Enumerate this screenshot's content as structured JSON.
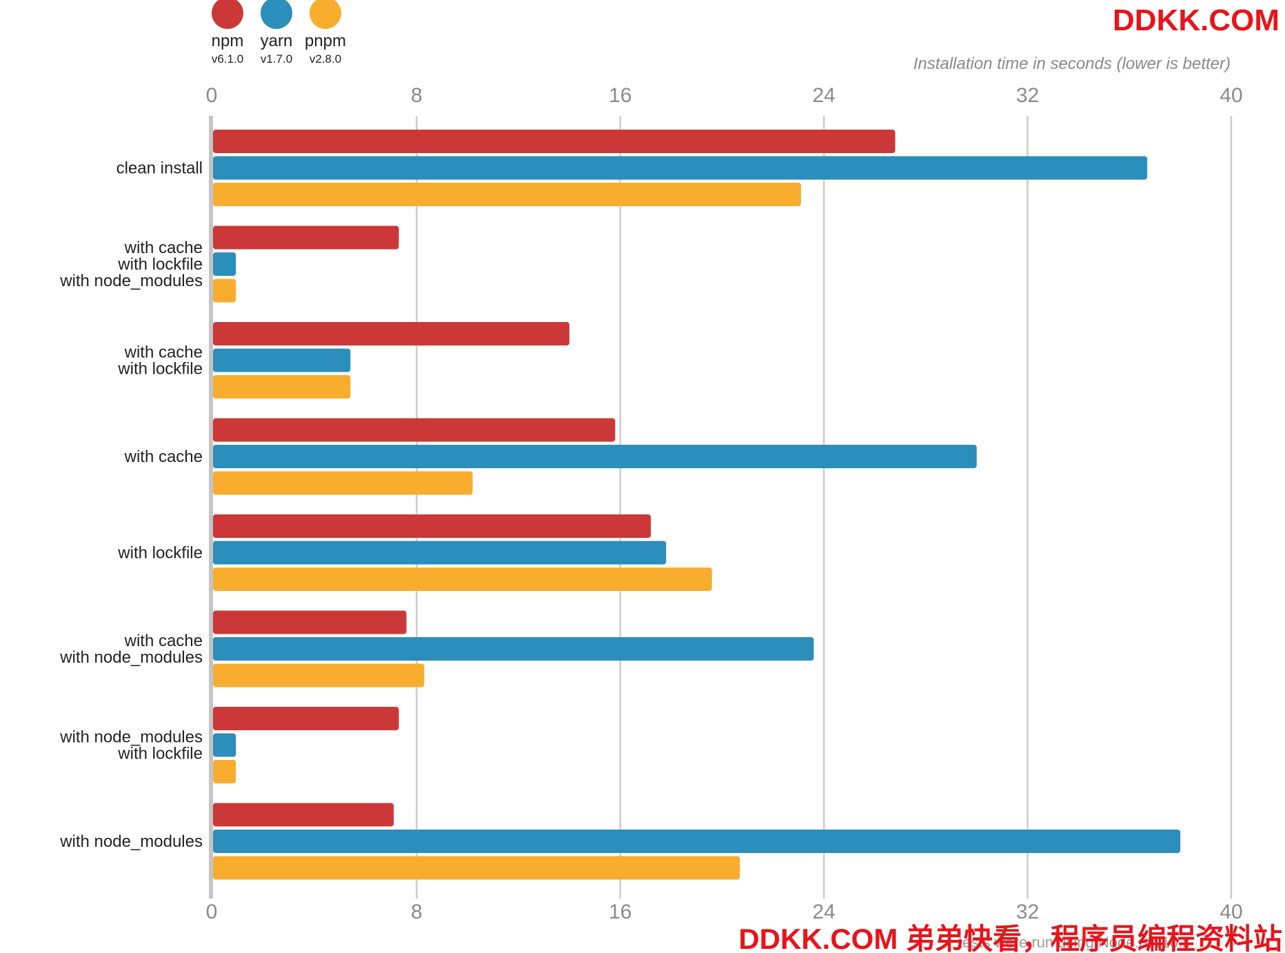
{
  "chart_data": {
    "type": "bar",
    "orientation": "horizontal",
    "title": "",
    "xlabel": "Installation time in seconds (lower is better)",
    "ylabel": "",
    "xlim": [
      0,
      40
    ],
    "xticks": [
      0,
      8,
      16,
      24,
      32,
      40
    ],
    "grid": true,
    "legend_position": "top-left",
    "categories": [
      [
        "clean install"
      ],
      [
        "with cache",
        "with lockfile",
        "with node_modules"
      ],
      [
        "with cache",
        "with lockfile"
      ],
      [
        "with cache"
      ],
      [
        "with lockfile"
      ],
      [
        "with cache",
        "with node_modules"
      ],
      [
        "with node_modules",
        "with lockfile"
      ],
      [
        "with node_modules"
      ]
    ],
    "series": [
      {
        "name": "npm",
        "version": "v6.1.0",
        "color": "#cb3837",
        "values": [
          26.8,
          7.3,
          14.0,
          15.8,
          17.2,
          7.6,
          7.3,
          7.1
        ]
      },
      {
        "name": "yarn",
        "version": "v1.7.0",
        "color": "#2c8ebb",
        "values": [
          36.7,
          0.9,
          5.4,
          30.0,
          17.8,
          23.6,
          0.9,
          38.0
        ]
      },
      {
        "name": "pnpm",
        "version": "v2.8.0",
        "color": "#f9ad2e",
        "values": [
          23.1,
          0.9,
          5.4,
          10.2,
          19.6,
          8.3,
          0.9,
          20.7
        ]
      }
    ]
  },
  "watermark": {
    "top": "DDKK.COM",
    "bottom": "DDKK.COM 弟弟快看，程序员编程资料站"
  },
  "footnote": "tests were run using Node.js v10.x"
}
